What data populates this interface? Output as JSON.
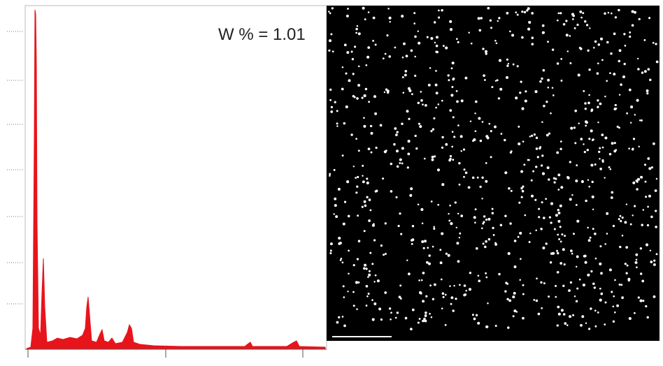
{
  "annotation": "W % = 1.01"
}
